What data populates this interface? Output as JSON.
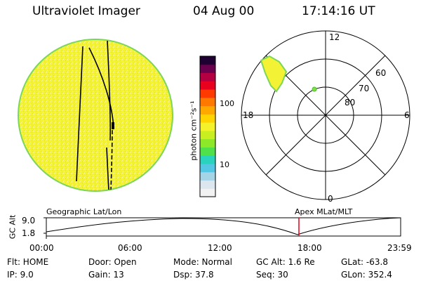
{
  "header": {
    "instrument": "Ultraviolet Imager",
    "date": "04 Aug 00",
    "time": "17:14:16 UT"
  },
  "colorbar": {
    "unit_label": "photon cm⁻²s⁻¹",
    "tick_labels": [
      "100",
      "10"
    ],
    "colors": [
      "#f2f2f2",
      "#dbe6ee",
      "#a5d4e6",
      "#53c7e3",
      "#2ad3bd",
      "#4fe04a",
      "#8ee82a",
      "#c9ef20",
      "#f4f22a",
      "#ffd400",
      "#ffa800",
      "#ff7800",
      "#ff3a00",
      "#e8001e",
      "#b40042",
      "#6a004e",
      "#1e0032"
    ]
  },
  "polar_plot": {
    "mlt_labels": [
      "12",
      "18",
      "6",
      "0"
    ],
    "lat_labels": [
      "60",
      "70",
      "80"
    ]
  },
  "timeline": {
    "left_label": "Geographic Lat/Lon",
    "right_label": "Apex MLat/MLT",
    "axis_label": "GC Alt",
    "y_ticks": [
      "9.0",
      "1.8"
    ],
    "x_ticks": [
      "00:00",
      "06:00",
      "12:00",
      "18:00",
      "23:59"
    ],
    "marker_color": "#e0001a"
  },
  "status": {
    "flt": "Flt: HOME",
    "ip": "IP:  9.0",
    "door": "Door: Open",
    "gain": "Gain: 13",
    "mode": "Mode: Normal",
    "dsp": "Dsp:   37.8",
    "gcalt": "GC Alt: 1.6 Re",
    "seq": "Seq: 30",
    "glat": "GLat: -63.8",
    "glon": "GLon: 352.4"
  }
}
